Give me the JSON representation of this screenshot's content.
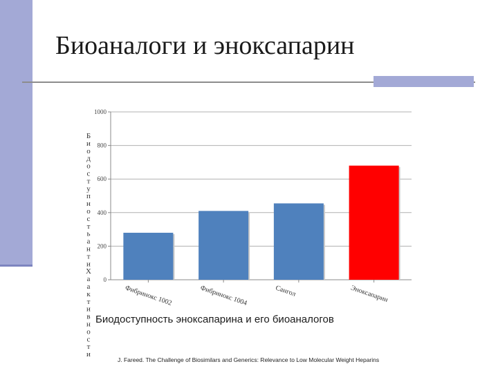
{
  "slide": {
    "title": "Биоаналоги и эноксапарин",
    "caption": "Биодоступность эноксапарина и его биоаналогов",
    "citation": "J. Fareed. The Challenge of Biosimilars and Generics: Relevance to Low Molecular Weight Heparins"
  },
  "colors": {
    "band": "#a3a9d6",
    "bar_blue": "#4f81bd",
    "bar_red": "#ff0000"
  },
  "chart_data": {
    "type": "bar",
    "categories": [
      "Фибринокс 1002",
      "Фибринокс 1004",
      "Сангол",
      "Эноксапарин"
    ],
    "values": [
      280,
      410,
      455,
      680
    ],
    "bar_colors": [
      "#4f81bd",
      "#4f81bd",
      "#4f81bd",
      "#ff0000"
    ],
    "ylabel": "Биодоступность анти-Xa активности",
    "ylim": [
      0,
      1000
    ],
    "yticks": [
      0,
      200,
      400,
      600,
      800,
      1000
    ],
    "grid": true,
    "legend": "none"
  }
}
